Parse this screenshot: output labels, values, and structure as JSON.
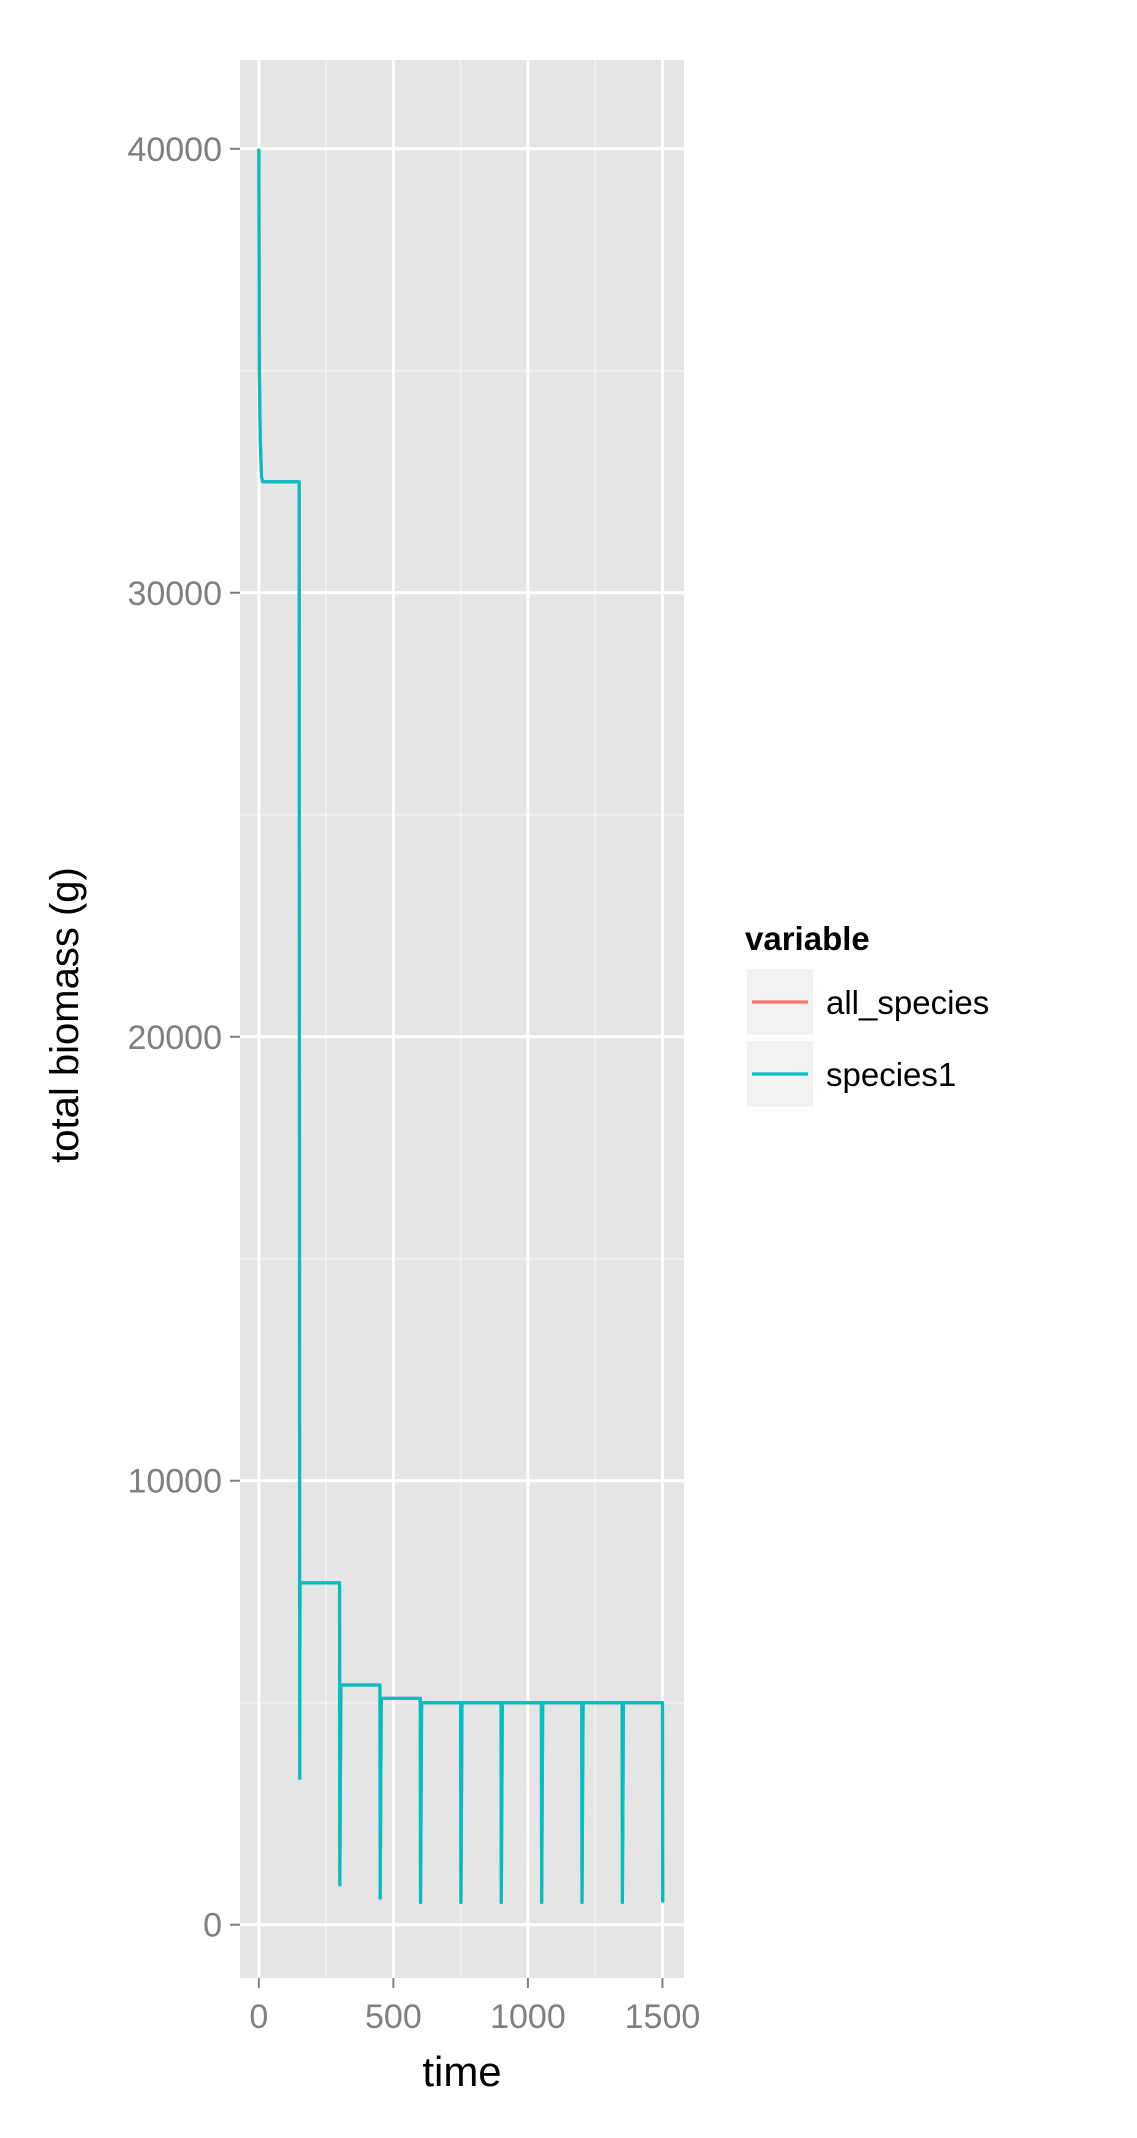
{
  "chart_data": {
    "type": "line",
    "title": "",
    "xlabel": "time",
    "ylabel": "total biomass (g)",
    "xlim": [
      -70,
      1580
    ],
    "ylim": [
      -1200,
      42000
    ],
    "x_ticks": [
      0,
      500,
      1000,
      1500
    ],
    "y_ticks": [
      0,
      10000,
      20000,
      30000,
      40000
    ],
    "x_tick_labels": [
      "0",
      "500",
      "1000",
      "1500"
    ],
    "y_tick_labels": [
      "0",
      "10000",
      "20000",
      "30000",
      "40000"
    ],
    "grid": true,
    "legend": {
      "title": "variable",
      "position": "right",
      "entries": [
        {
          "label": "all_species",
          "color": "#F8766D"
        },
        {
          "label": "species1",
          "color": "#00BFC4"
        }
      ]
    },
    "series": [
      {
        "name": "all_species",
        "color": "#F8766D",
        "x": [
          0,
          2,
          5,
          10,
          15,
          20,
          150,
          152,
          153,
          300,
          301,
          305,
          450,
          451,
          455,
          600,
          601,
          605,
          750,
          751,
          755,
          900,
          901,
          905,
          1050,
          1051,
          1055,
          1200,
          1201,
          1205,
          1350,
          1351,
          1355,
          1500,
          1501
        ],
        "y": [
          40000,
          35000,
          33500,
          32600,
          32500,
          32500,
          32500,
          3300,
          7700,
          7700,
          900,
          5400,
          5400,
          600,
          5100,
          5100,
          500,
          5000,
          5000,
          500,
          5000,
          5000,
          500,
          5000,
          5000,
          500,
          5000,
          5000,
          500,
          5000,
          5000,
          500,
          5000,
          5000,
          500
        ]
      },
      {
        "name": "species1",
        "color": "#00BFC4",
        "x": [
          0,
          2,
          5,
          10,
          15,
          20,
          150,
          152,
          153,
          300,
          301,
          305,
          450,
          451,
          455,
          600,
          601,
          605,
          750,
          751,
          755,
          900,
          901,
          905,
          1050,
          1051,
          1055,
          1200,
          1201,
          1205,
          1350,
          1351,
          1355,
          1500,
          1501
        ],
        "y": [
          40000,
          35000,
          33500,
          32600,
          32500,
          32500,
          32500,
          3300,
          7700,
          7700,
          900,
          5400,
          5400,
          600,
          5100,
          5100,
          500,
          5000,
          5000,
          500,
          5000,
          5000,
          500,
          5000,
          5000,
          500,
          5000,
          5000,
          500,
          5000,
          5000,
          500,
          5000,
          5000,
          500
        ]
      }
    ]
  }
}
